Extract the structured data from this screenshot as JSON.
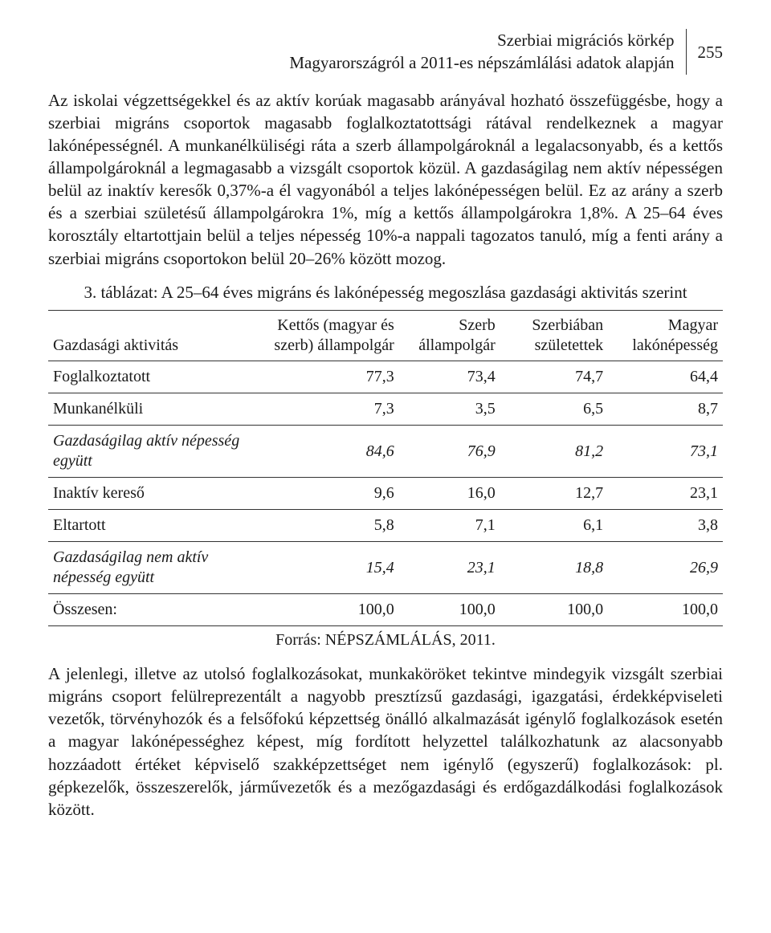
{
  "header": {
    "title_line1": "Szerbiai migrációs körkép",
    "title_line2": "Magyarországról a 2011-es népszámlálási adatok alapján",
    "page_number": "255"
  },
  "paragraph1": "Az iskolai végzettségekkel és az aktív korúak magasabb arányával hozható összefüggésbe, hogy a szerbiai migráns csoportok magasabb foglalkoztatottsági rátával rendelkeznek a magyar lakónépességnél. A munkanélküliségi ráta a szerb állampolgároknál a legalacsonyabb, és a kettős állampolgároknál a legmagasabb a vizsgált csoportok közül. A gazdaságilag nem aktív népességen belül az inaktív keresők 0,37%-a él vagyonából a teljes lakónépességen belül. Ez az arány a szerb és a szerbiai születésű állampolgárokra 1%, míg a kettős állampolgárokra 1,8%. A 25–64 éves korosztály eltartottjain belül a teljes népesség 10%-a nappali tagozatos tanuló, míg a fenti arány a szerbiai migráns csoportokon belül 20–26% között mozog.",
  "table": {
    "title": "3. táblázat: A 25–64 éves migráns és lakónépesség megoszlása gazdasági aktivitás szerint",
    "col_label": "Gazdasági aktivitás",
    "columns": [
      {
        "line1": "Kettős (magyar és",
        "line2": "szerb) állampolgár",
        "width": "21%"
      },
      {
        "line1": "Szerb",
        "line2": "állampolgár",
        "width": "15%"
      },
      {
        "line1": "Szerbiában",
        "line2": "születettek",
        "width": "16%"
      },
      {
        "line1": "Magyar",
        "line2": "lakónépesség",
        "width": "17%"
      }
    ],
    "rows": [
      {
        "label": "Foglalkoztatott",
        "italic": false,
        "values": [
          "77,3",
          "73,4",
          "74,7",
          "64,4"
        ]
      },
      {
        "label": "Munkanélküli",
        "italic": false,
        "values": [
          "7,3",
          "3,5",
          "6,5",
          "8,7"
        ]
      },
      {
        "label": "Gazdaságilag aktív népesség együtt",
        "italic": true,
        "values": [
          "84,6",
          "76,9",
          "81,2",
          "73,1"
        ]
      },
      {
        "label": "Inaktív kereső",
        "italic": false,
        "values": [
          "9,6",
          "16,0",
          "12,7",
          "23,1"
        ]
      },
      {
        "label": "Eltartott",
        "italic": false,
        "values": [
          "5,8",
          "7,1",
          "6,1",
          "3,8"
        ]
      },
      {
        "label": "Gazdaságilag nem aktív népesség együtt",
        "italic": true,
        "values": [
          "15,4",
          "23,1",
          "18,8",
          "26,9"
        ]
      }
    ],
    "total": {
      "label": "Összesen:",
      "values": [
        "100,0",
        "100,0",
        "100,0",
        "100,0"
      ]
    },
    "source": "Forrás: NÉPSZÁMLÁLÁS, 2011."
  },
  "paragraph2": "A jelenlegi, illetve az utolsó foglalkozásokat, munkaköröket tekintve mindegyik vizsgált szerbiai migráns csoport felülreprezentált a nagyobb presztízsű gazdasági, igazgatási, érdekképviseleti vezetők, törvényhozók és a felsőfokú képzettség önálló alkalmazását igénylő foglalkozások esetén a magyar lakónépességhez képest, míg fordított helyzettel találkozhatunk az alacsonyabb hozzáadott értéket képviselő szakképzettséget nem igénylő (egyszerű) foglalkozások: pl. gépkezelők, összeszerelők, járművezetők és a mezőgazdasági és erdőgazdálkodási foglalkozások között."
}
